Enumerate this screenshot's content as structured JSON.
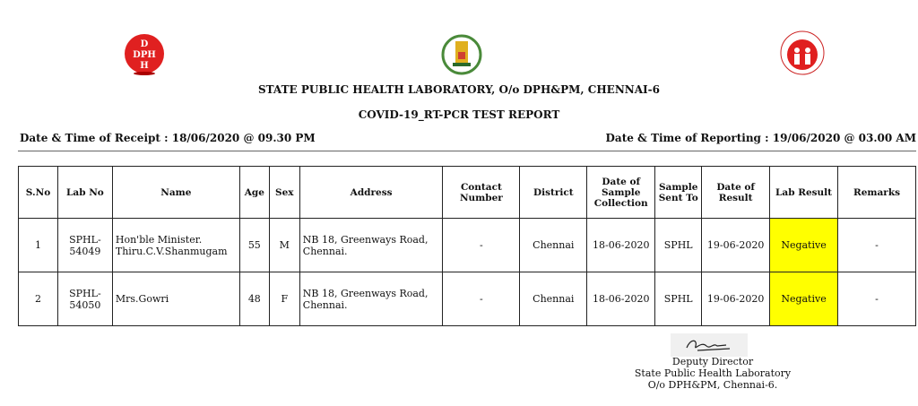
{
  "logos": {
    "left": "DPH",
    "center": "Tamil Nadu Government emblem",
    "right": "NATIONAL HEALTH MISSION"
  },
  "header": {
    "lab_name": "STATE PUBLIC HEALTH LABORATORY, O/o DPH&PM, CHENNAI-6",
    "report_title": "COVID-19_RT-PCR TEST REPORT",
    "receipt": "Date & Time of Receipt : 18/06/2020  @ 09.30 PM",
    "reporting": "Date & Time of Reporting : 19/06/2020 @ 03.00 AM"
  },
  "table": {
    "columns": [
      "S.No",
      "Lab No",
      "Name",
      "Age",
      "Sex",
      "Address",
      "Contact Number",
      "District",
      "Date of Sample Collection",
      "Sample Sent To",
      "Date of Result",
      "Lab Result",
      "Remarks"
    ],
    "rows": [
      [
        "1",
        "SPHL-54049",
        "Hon'ble Minister. Thiru.C.V.Shanmugam",
        "55",
        "M",
        "NB 18, Greenways Road, Chennai.",
        "-",
        "Chennai",
        "18-06-2020",
        "SPHL",
        "19-06-2020",
        "Negative",
        "-"
      ],
      [
        "2",
        "SPHL-54050",
        "Mrs.Gowri",
        "48",
        "F",
        "NB 18, Greenways Road, Chennai.",
        "-",
        "Chennai",
        "18-06-2020",
        "SPHL",
        "19-06-2020",
        "Negative",
        "-"
      ]
    ],
    "highlight_color": "#ffff00"
  },
  "signature": {
    "line1": "Deputy Director",
    "line2": "State Public Health Laboratory",
    "line3": "O/o DPH&PM, Chennai-6."
  }
}
